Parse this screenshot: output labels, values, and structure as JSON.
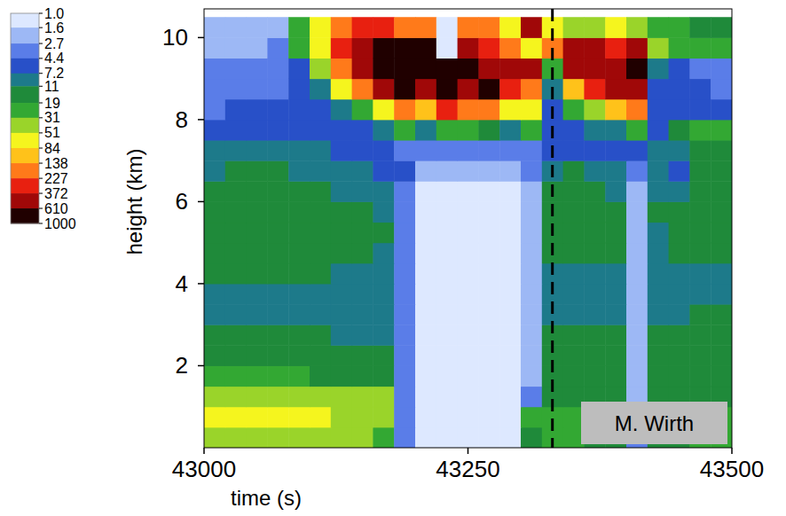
{
  "chart_data": {
    "type": "heatmap",
    "x_label": "time (s)",
    "y_label": "height (km)",
    "xlim": [
      43000,
      43500
    ],
    "xticks": [
      43000,
      43250,
      43500
    ],
    "ylim": [
      0,
      10.7
    ],
    "yticks": [
      2,
      4,
      6,
      8,
      10
    ],
    "x": [
      43000,
      43020,
      43040,
      43060,
      43080,
      43100,
      43120,
      43140,
      43160,
      43180,
      43200,
      43220,
      43240,
      43260,
      43280,
      43300,
      43320,
      43340,
      43360,
      43380,
      43400,
      43420,
      43440,
      43460,
      43480,
      43500
    ],
    "y": [
      0,
      0.5,
      1,
      1.5,
      2,
      2.5,
      3,
      3.5,
      4,
      4.5,
      5,
      5.5,
      6,
      6.5,
      7,
      7.5,
      8,
      8.5,
      9,
      9.5,
      10,
      10.5
    ],
    "cells": [
      [
        40,
        40,
        40,
        40,
        40,
        40,
        38,
        35,
        30,
        4,
        1.2,
        1,
        1,
        1,
        1.2,
        15,
        20,
        20,
        18,
        18,
        3,
        18,
        18,
        20,
        20
      ],
      [
        55,
        55,
        55,
        55,
        55,
        55,
        50,
        48,
        40,
        4,
        1.1,
        1,
        1,
        1,
        1.2,
        20,
        25,
        22,
        20,
        20,
        2.5,
        20,
        20,
        22,
        22
      ],
      [
        45,
        45,
        45,
        45,
        45,
        45,
        45,
        40,
        35,
        4,
        1.1,
        1,
        1,
        1,
        1.2,
        3,
        15,
        15,
        14,
        14,
        2,
        14,
        14,
        15,
        15
      ],
      [
        20,
        20,
        20,
        19,
        19,
        18,
        17,
        16,
        14,
        3,
        1.1,
        1,
        1,
        1,
        1.2,
        2.5,
        12,
        12,
        12,
        12,
        2,
        12,
        12,
        14,
        14
      ],
      [
        14,
        14,
        14,
        14,
        13,
        13,
        13,
        12,
        11,
        3,
        1.1,
        1,
        1,
        1,
        1.1,
        1.8,
        13,
        13,
        13,
        13,
        2,
        13,
        13,
        15,
        15
      ],
      [
        12,
        12,
        12,
        12,
        11,
        11,
        10,
        10,
        9,
        3,
        1.1,
        1,
        1,
        1,
        1.1,
        1.7,
        12,
        12,
        12,
        12,
        1.8,
        12,
        12,
        14,
        14
      ],
      [
        10,
        10,
        10,
        10,
        9,
        9,
        9,
        8,
        8,
        3,
        1.1,
        1,
        1,
        1,
        1.1,
        1.7,
        10,
        10,
        10,
        10,
        1.8,
        10,
        10,
        11,
        12
      ],
      [
        10,
        10,
        10,
        10,
        10,
        9,
        9,
        9,
        8,
        3,
        1.1,
        1,
        1,
        1,
        1.1,
        1.6,
        9,
        9,
        9,
        9,
        1.8,
        8,
        8,
        9,
        9
      ],
      [
        12,
        12,
        12,
        11,
        11,
        11,
        10,
        10,
        9,
        3,
        1.2,
        1.1,
        1,
        1,
        1.1,
        1.6,
        10,
        10,
        9,
        9,
        1.8,
        9,
        9,
        10,
        10
      ],
      [
        14,
        14,
        13,
        13,
        13,
        12,
        12,
        12,
        10,
        3,
        1.2,
        1.1,
        1.1,
        1.1,
        1.2,
        1.8,
        12,
        12,
        11,
        11,
        2,
        10,
        11,
        12,
        12
      ],
      [
        16,
        16,
        16,
        16,
        15,
        15,
        14,
        12,
        11,
        3,
        1.2,
        1.1,
        1.1,
        1.1,
        1.2,
        1.8,
        13,
        13,
        12,
        12,
        2,
        10,
        12,
        14,
        14
      ],
      [
        15,
        15,
        16,
        15,
        14,
        13,
        12,
        12,
        10,
        4,
        1.3,
        1.2,
        1.2,
        1.2,
        1.3,
        1.8,
        14,
        13,
        12,
        12,
        2,
        12,
        12,
        15,
        15
      ],
      [
        14,
        14,
        14,
        13,
        12,
        12,
        10,
        10,
        9,
        4,
        1.5,
        1.5,
        1.5,
        1.5,
        1.5,
        2,
        12,
        12,
        12,
        10,
        2.5,
        10,
        10,
        14,
        14
      ],
      [
        10,
        11,
        12,
        12,
        10,
        9,
        8,
        8,
        7,
        5,
        2,
        2,
        2,
        2,
        2,
        3,
        10,
        12,
        10,
        9,
        3,
        8,
        6,
        12,
        13
      ],
      [
        9,
        9,
        9,
        8,
        8,
        8,
        6,
        5,
        5,
        4,
        3,
        3,
        3,
        3,
        3,
        4,
        6,
        6,
        5,
        6,
        5,
        8,
        10,
        12,
        14
      ],
      [
        6,
        6,
        6,
        6,
        6,
        6,
        5,
        5,
        8,
        30,
        10,
        20,
        30,
        15,
        10,
        20,
        5,
        5,
        8,
        10,
        20,
        5,
        12,
        30,
        20
      ],
      [
        4,
        5,
        5,
        5,
        5,
        5,
        8,
        30,
        60,
        200,
        100,
        300,
        150,
        200,
        60,
        80,
        5,
        20,
        50,
        100,
        200,
        5,
        5,
        5,
        5
      ],
      [
        4,
        4,
        4,
        4,
        5,
        8,
        60,
        200,
        400,
        800,
        500,
        900,
        600,
        700,
        300,
        200,
        8,
        100,
        300,
        400,
        500,
        6,
        5,
        5,
        4
      ],
      [
        3,
        3,
        3,
        4,
        6,
        40,
        200,
        500,
        900,
        950,
        900,
        700,
        900,
        500,
        600,
        400,
        30,
        400,
        500,
        600,
        700,
        10,
        5,
        4,
        4
      ],
      [
        2,
        2,
        2.5,
        3,
        20,
        80,
        300,
        600,
        900,
        700,
        800,
        1,
        400,
        300,
        200,
        60,
        200,
        500,
        400,
        300,
        400,
        40,
        20,
        25,
        20
      ],
      [
        2,
        2,
        2,
        2,
        30,
        60,
        150,
        250,
        300,
        200,
        200,
        1,
        200,
        150,
        60,
        400,
        60,
        40,
        50,
        60,
        40,
        30,
        20,
        15,
        12
      ]
    ],
    "colorbar": {
      "range": [
        1,
        1000
      ],
      "log": true,
      "ticks": [
        {
          "value": 1,
          "label": "1.0"
        },
        1.6,
        2.7,
        4.4,
        7.2,
        11,
        19,
        31,
        51,
        84,
        138,
        227,
        372,
        610,
        1000
      ],
      "colors": [
        "#dde8ff",
        "#9db8f5",
        "#5a7de8",
        "#2850c8",
        "#1d7a8a",
        "#1f8a3a",
        "#33a833",
        "#9ad42a",
        "#f5f51e",
        "#ffc21a",
        "#ff7a1a",
        "#e82010",
        "#a00808",
        "#200000"
      ]
    },
    "vline": 43330,
    "annotation": "M. Wirth"
  }
}
